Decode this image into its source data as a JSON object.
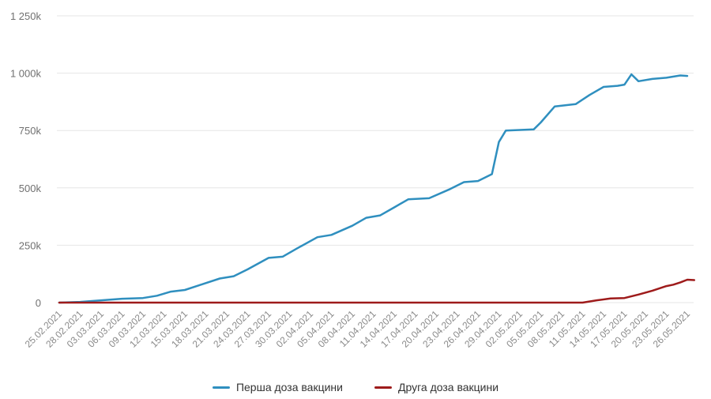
{
  "chart_data": {
    "type": "line",
    "title": "",
    "xlabel": "",
    "ylabel": "",
    "ylim": [
      0,
      1250000
    ],
    "grid": true,
    "legend_position": "bottom-center",
    "y_ticks": [
      {
        "value": 0,
        "label": "0"
      },
      {
        "value": 250000,
        "label": "250k"
      },
      {
        "value": 500000,
        "label": "500k"
      },
      {
        "value": 750000,
        "label": "750k"
      },
      {
        "value": 1000000,
        "label": "1 000k"
      },
      {
        "value": 1250000,
        "label": "1 250k"
      }
    ],
    "x_start": "25.02.2021",
    "x_end": "26.05.2021",
    "x_tick_labels": [
      "25.02.2021",
      "28.02.2021",
      "03.03.2021",
      "06.03.2021",
      "09.03.2021",
      "12.03.2021",
      "15.03.2021",
      "18.03.2021",
      "21.03.2021",
      "24.03.2021",
      "27.03.2021",
      "30.03.2021",
      "02.04.2021",
      "05.04.2021",
      "08.04.2021",
      "11.04.2021",
      "14.04.2021",
      "17.04.2021",
      "20.04.2021",
      "23.04.2021",
      "26.04.2021",
      "29.04.2021",
      "02.05.2021",
      "05.05.2021",
      "08.05.2021",
      "11.05.2021",
      "14.05.2021",
      "17.05.2021",
      "20.05.2021",
      "23.05.2021",
      "26.05.2021"
    ],
    "series": [
      {
        "name": "Перша доза вакцини",
        "color": "#2f8fbf",
        "points": [
          {
            "day": 0,
            "value": 0
          },
          {
            "day": 3,
            "value": 3000
          },
          {
            "day": 6,
            "value": 10000
          },
          {
            "day": 9,
            "value": 17000
          },
          {
            "day": 12,
            "value": 20000
          },
          {
            "day": 14,
            "value": 30000
          },
          {
            "day": 16,
            "value": 48000
          },
          {
            "day": 18,
            "value": 55000
          },
          {
            "day": 20,
            "value": 75000
          },
          {
            "day": 23,
            "value": 105000
          },
          {
            "day": 25,
            "value": 115000
          },
          {
            "day": 27,
            "value": 145000
          },
          {
            "day": 30,
            "value": 195000
          },
          {
            "day": 32,
            "value": 200000
          },
          {
            "day": 34,
            "value": 235000
          },
          {
            "day": 37,
            "value": 285000
          },
          {
            "day": 39,
            "value": 295000
          },
          {
            "day": 42,
            "value": 335000
          },
          {
            "day": 44,
            "value": 370000
          },
          {
            "day": 46,
            "value": 380000
          },
          {
            "day": 48,
            "value": 415000
          },
          {
            "day": 50,
            "value": 450000
          },
          {
            "day": 53,
            "value": 455000
          },
          {
            "day": 56,
            "value": 495000
          },
          {
            "day": 58,
            "value": 525000
          },
          {
            "day": 60,
            "value": 530000
          },
          {
            "day": 62,
            "value": 560000
          },
          {
            "day": 63,
            "value": 700000
          },
          {
            "day": 64,
            "value": 750000
          },
          {
            "day": 68,
            "value": 755000
          },
          {
            "day": 69,
            "value": 785000
          },
          {
            "day": 71,
            "value": 855000
          },
          {
            "day": 74,
            "value": 865000
          },
          {
            "day": 76,
            "value": 905000
          },
          {
            "day": 78,
            "value": 940000
          },
          {
            "day": 80,
            "value": 945000
          },
          {
            "day": 81,
            "value": 950000
          },
          {
            "day": 82,
            "value": 995000
          },
          {
            "day": 83,
            "value": 965000
          },
          {
            "day": 85,
            "value": 975000
          },
          {
            "day": 87,
            "value": 980000
          },
          {
            "day": 89,
            "value": 990000
          },
          {
            "day": 90,
            "value": 988000
          }
        ]
      },
      {
        "name": "Друга доза вакцини",
        "color": "#9e1b1b",
        "points": [
          {
            "day": 0,
            "value": 0
          },
          {
            "day": 75,
            "value": 0
          },
          {
            "day": 77,
            "value": 10000
          },
          {
            "day": 79,
            "value": 18000
          },
          {
            "day": 81,
            "value": 20000
          },
          {
            "day": 83,
            "value": 35000
          },
          {
            "day": 85,
            "value": 52000
          },
          {
            "day": 87,
            "value": 72000
          },
          {
            "day": 88,
            "value": 78000
          },
          {
            "day": 89,
            "value": 88000
          },
          {
            "day": 90,
            "value": 100000
          },
          {
            "day": 91,
            "value": 98000
          }
        ]
      }
    ]
  },
  "legend": {
    "first_dose": "Перша доза вакцини",
    "second_dose": "Друга доза вакцини"
  },
  "colors": {
    "first_dose": "#2f8fbf",
    "second_dose": "#9e1b1b",
    "grid": "#e6e6e6",
    "axis_text": "#707070"
  }
}
